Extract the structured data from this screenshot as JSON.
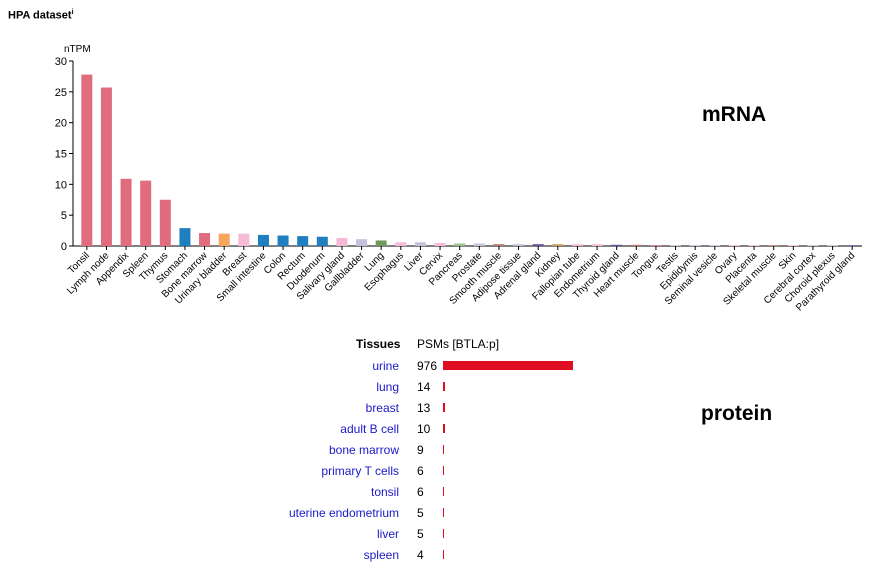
{
  "header": {
    "title": "HPA dataset",
    "info_mark": "i"
  },
  "labels": {
    "mrna": "mRNA",
    "protein": "protein"
  },
  "chart_data": [
    {
      "type": "bar",
      "ylabel": "nTPM",
      "ylim": [
        0,
        30
      ],
      "yticks": [
        "0",
        "5",
        "10",
        "15",
        "20",
        "25",
        "30"
      ],
      "categories": [
        "Tonsil",
        "Lymph node",
        "Appendix",
        "Spleen",
        "Thymus",
        "Stomach",
        "Bone marrow",
        "Urinary bladder",
        "Breast",
        "Small intestine",
        "Colon",
        "Rectum",
        "Duodenum",
        "Salivary gland",
        "Gallbladder",
        "Lung",
        "Esophagus",
        "Liver",
        "Cervix",
        "Pancreas",
        "Prostate",
        "Smooth muscle",
        "Adipose tissue",
        "Adrenal gland",
        "Kidney",
        "Fallopian tube",
        "Endometrium",
        "Thyroid gland",
        "Heart muscle",
        "Tongue",
        "Testis",
        "Epididymis",
        "Seminal vesicle",
        "Ovary",
        "Placenta",
        "Skeletal muscle",
        "Skin",
        "Cerebral cortex",
        "Choroid plexus",
        "Parathyroid gland"
      ],
      "values": [
        27.8,
        25.7,
        10.9,
        10.6,
        7.5,
        2.9,
        2.1,
        2.0,
        2.0,
        1.8,
        1.7,
        1.6,
        1.5,
        1.3,
        1.1,
        0.9,
        0.6,
        0.6,
        0.5,
        0.4,
        0.4,
        0.3,
        0.3,
        0.3,
        0.3,
        0.3,
        0.3,
        0.2,
        0.2,
        0.1,
        0.1,
        0.1,
        0.1,
        0.1,
        0.1,
        0.1,
        0.1,
        0.1,
        0.1,
        0.1
      ],
      "colors": [
        "#e06c7d",
        "#e06c7d",
        "#e06c7d",
        "#e06c7d",
        "#e06c7d",
        "#1f7fc0",
        "#e06c7d",
        "#f5a55c",
        "#f6b9d6",
        "#1f7fc0",
        "#1f7fc0",
        "#1f7fc0",
        "#1f7fc0",
        "#f6b9d6",
        "#c7c0dd",
        "#6f9a5c",
        "#f6b9d6",
        "#c7c0dd",
        "#f6b9d6",
        "#9bc18d",
        "#c7c0dd",
        "#b97b6f",
        "#c7c0dd",
        "#6b4fa2",
        "#c8a15c",
        "#f6b9d6",
        "#f6b9d6",
        "#6b4fa2",
        "#b97b6f",
        "#e06c7d",
        "#c7c0dd",
        "#c7c0dd",
        "#c7c0dd",
        "#f6b9d6",
        "#f6b9d6",
        "#b97b6f",
        "#f6b9d6",
        "#c7c0dd",
        "#c7c0dd",
        "#6b4fa2"
      ]
    },
    {
      "type": "bar",
      "orientation": "horizontal",
      "headers": {
        "tissues": "Tissues",
        "psms": "PSMs [BTLA:p]"
      },
      "categories": [
        "urine",
        "lung",
        "breast",
        "adult B cell",
        "bone marrow",
        "primary T cells",
        "tonsil",
        "uterine endometrium",
        "liver",
        "spleen"
      ],
      "values": [
        976,
        14,
        13,
        10,
        9,
        6,
        6,
        5,
        5,
        4
      ],
      "bar_color": "#e00d23"
    }
  ]
}
